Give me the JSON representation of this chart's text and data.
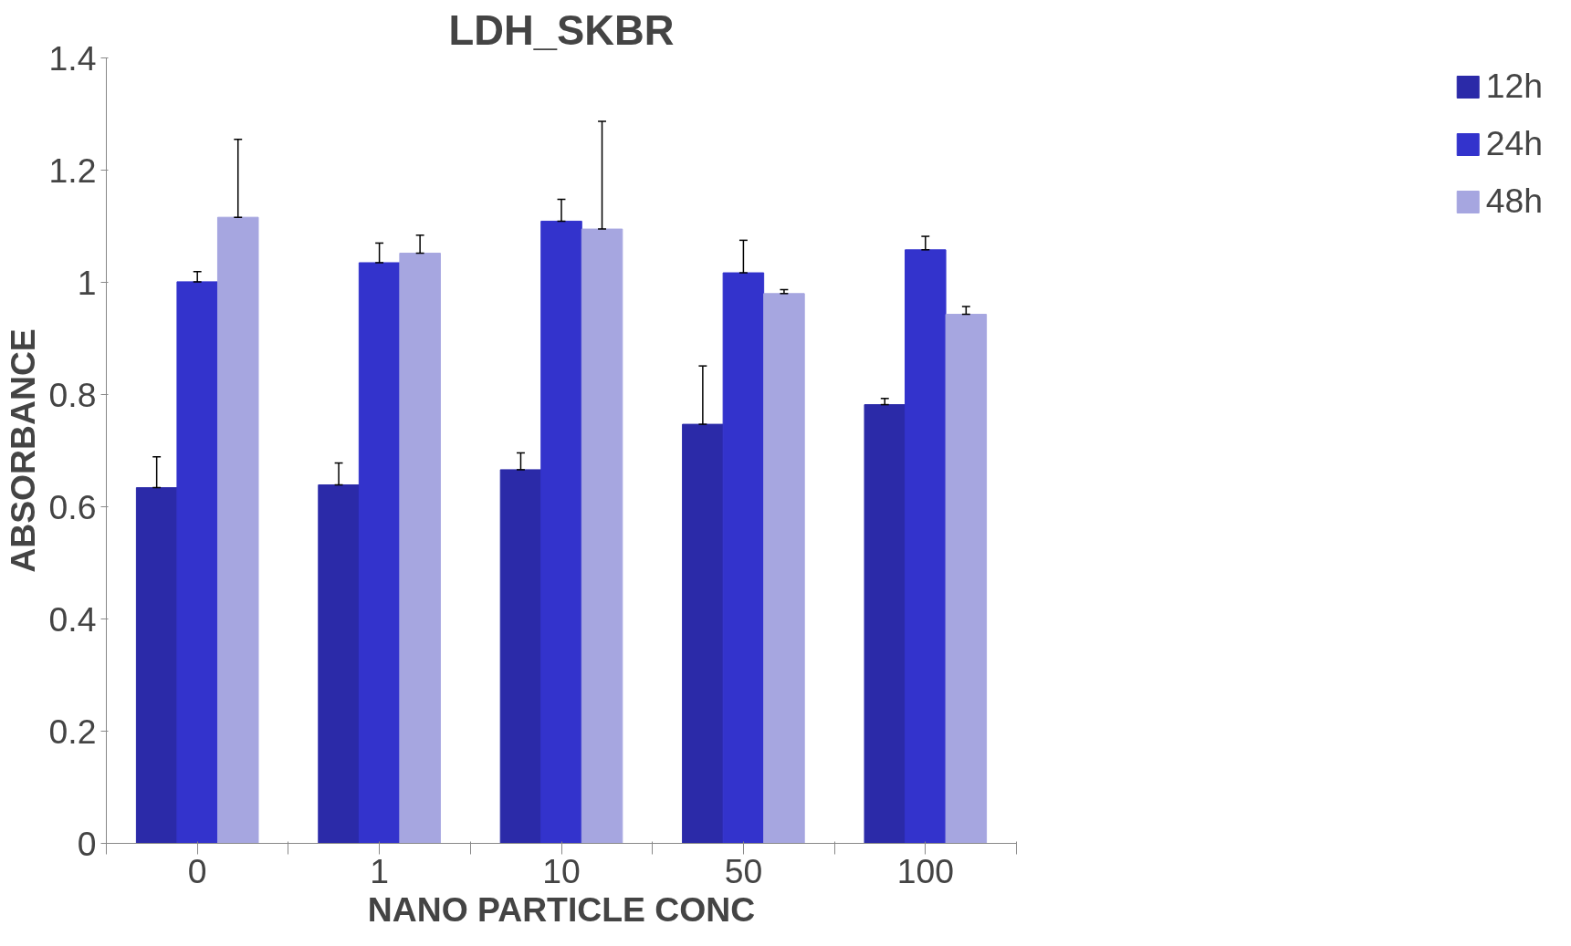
{
  "chart_data": {
    "type": "bar",
    "title": "LDH_SKBR",
    "xlabel": "NANO PARTICLE CONC",
    "ylabel": "ABSORBANCE",
    "categories": [
      "0",
      "1",
      "10",
      "50",
      "100"
    ],
    "series": [
      {
        "name": "12h",
        "color": "#2b2aa8",
        "values": [
          0.634,
          0.639,
          0.666,
          0.747,
          0.782
        ],
        "errors": [
          [
            0.634,
            0.689
          ],
          [
            0.639,
            0.678
          ],
          [
            0.666,
            0.696
          ],
          [
            0.747,
            0.851
          ],
          [
            0.782,
            0.793
          ]
        ]
      },
      {
        "name": "24h",
        "color": "#3333cc",
        "values": [
          1.001,
          1.035,
          1.109,
          1.017,
          1.058
        ],
        "errors": [
          [
            1.001,
            1.019
          ],
          [
            1.035,
            1.07
          ],
          [
            1.109,
            1.148
          ],
          [
            1.017,
            1.075
          ],
          [
            1.058,
            1.082
          ]
        ]
      },
      {
        "name": "48h",
        "color": "#a6a6e0",
        "values": [
          1.116,
          1.052,
          1.095,
          0.98,
          0.943
        ],
        "errors": [
          [
            1.116,
            1.255
          ],
          [
            1.052,
            1.084
          ],
          [
            1.095,
            1.287
          ],
          [
            0.98,
            0.987
          ],
          [
            0.943,
            0.957
          ]
        ]
      }
    ],
    "ylim": [
      0,
      1.4
    ],
    "yticks": [
      0,
      0.2,
      0.4,
      0.6,
      0.8,
      1,
      1.2,
      1.4
    ],
    "grid": false,
    "legend": "right"
  }
}
